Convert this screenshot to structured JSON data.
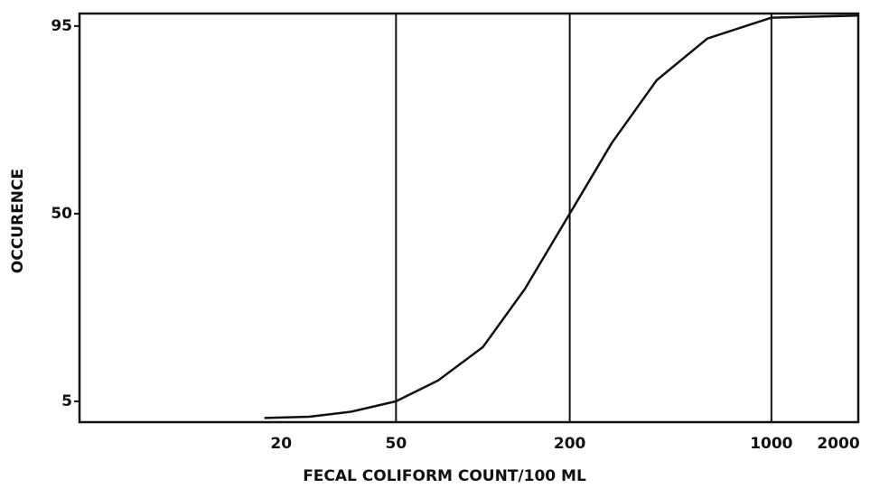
{
  "chart_data": {
    "type": "line",
    "xlabel": "FECAL COLIFORM COUNT/100 ML",
    "ylabel": "OCCURENCE",
    "x": [
      17.5,
      25,
      35,
      50,
      70,
      100,
      140,
      200,
      280,
      400,
      600,
      1000,
      2000
    ],
    "series": [
      {
        "name": "occurence",
        "color": "#111111",
        "values": [
          1,
          1.3,
          2.5,
          5,
          10,
          18,
          32,
          50,
          67,
          82,
          92,
          97,
          97.5
        ]
      }
    ],
    "xscale": "log",
    "xlim": [
      4,
      2000
    ],
    "xticks": [
      20,
      50,
      200,
      1000,
      2000
    ],
    "xgrid": [
      50,
      200,
      1000
    ],
    "ylim": [
      0,
      98
    ],
    "yticks": [
      5,
      50,
      95
    ]
  }
}
